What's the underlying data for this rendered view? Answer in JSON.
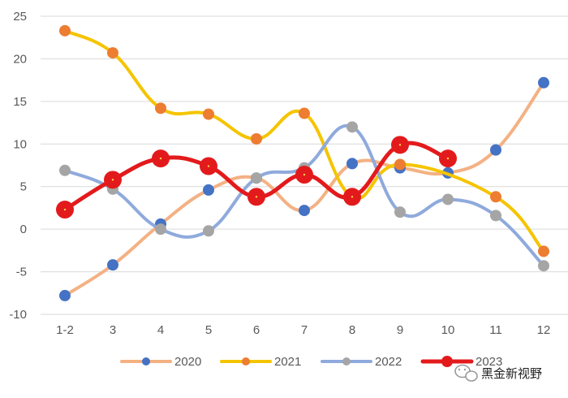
{
  "chart_data": {
    "type": "line",
    "title": "",
    "xlabel": "",
    "ylabel": "",
    "categories": [
      "1-2",
      "3",
      "4",
      "5",
      "6",
      "7",
      "8",
      "9",
      "10",
      "11",
      "12"
    ],
    "ylim": [
      -10,
      25
    ],
    "yticks": [
      "25",
      "20",
      "15",
      "10",
      "5",
      "0",
      "-5",
      "-10"
    ],
    "grid": "horizontal",
    "legend_position": "bottom",
    "series": [
      {
        "name": "2020",
        "line_color": "#F4B183",
        "marker_color": "#4472C4",
        "values": [
          -7.8,
          -4.2,
          0.6,
          4.6,
          6.0,
          2.2,
          7.7,
          7.2,
          6.6,
          9.3,
          17.2
        ]
      },
      {
        "name": "2021",
        "line_color": "#F5C400",
        "marker_color": "#ED7D31",
        "values": [
          23.3,
          20.7,
          14.2,
          13.5,
          10.6,
          13.6,
          3.8,
          7.6,
          null,
          3.8,
          -2.6
        ]
      },
      {
        "name": "2022",
        "line_color": "#8FAADC",
        "marker_color": "#A5A5A5",
        "values": [
          6.9,
          4.7,
          0.0,
          -0.2,
          6.0,
          7.2,
          12.0,
          2.0,
          3.5,
          1.6,
          -4.3
        ]
      },
      {
        "name": "2023",
        "line_color": "#E31A1C",
        "marker_color": "#E31A1C",
        "values": [
          2.3,
          5.8,
          8.3,
          7.4,
          3.8,
          6.4,
          3.8,
          9.9,
          8.3,
          null,
          null
        ]
      }
    ]
  },
  "watermark": {
    "text": "黑金新视野",
    "icon": "wechat-icon"
  }
}
